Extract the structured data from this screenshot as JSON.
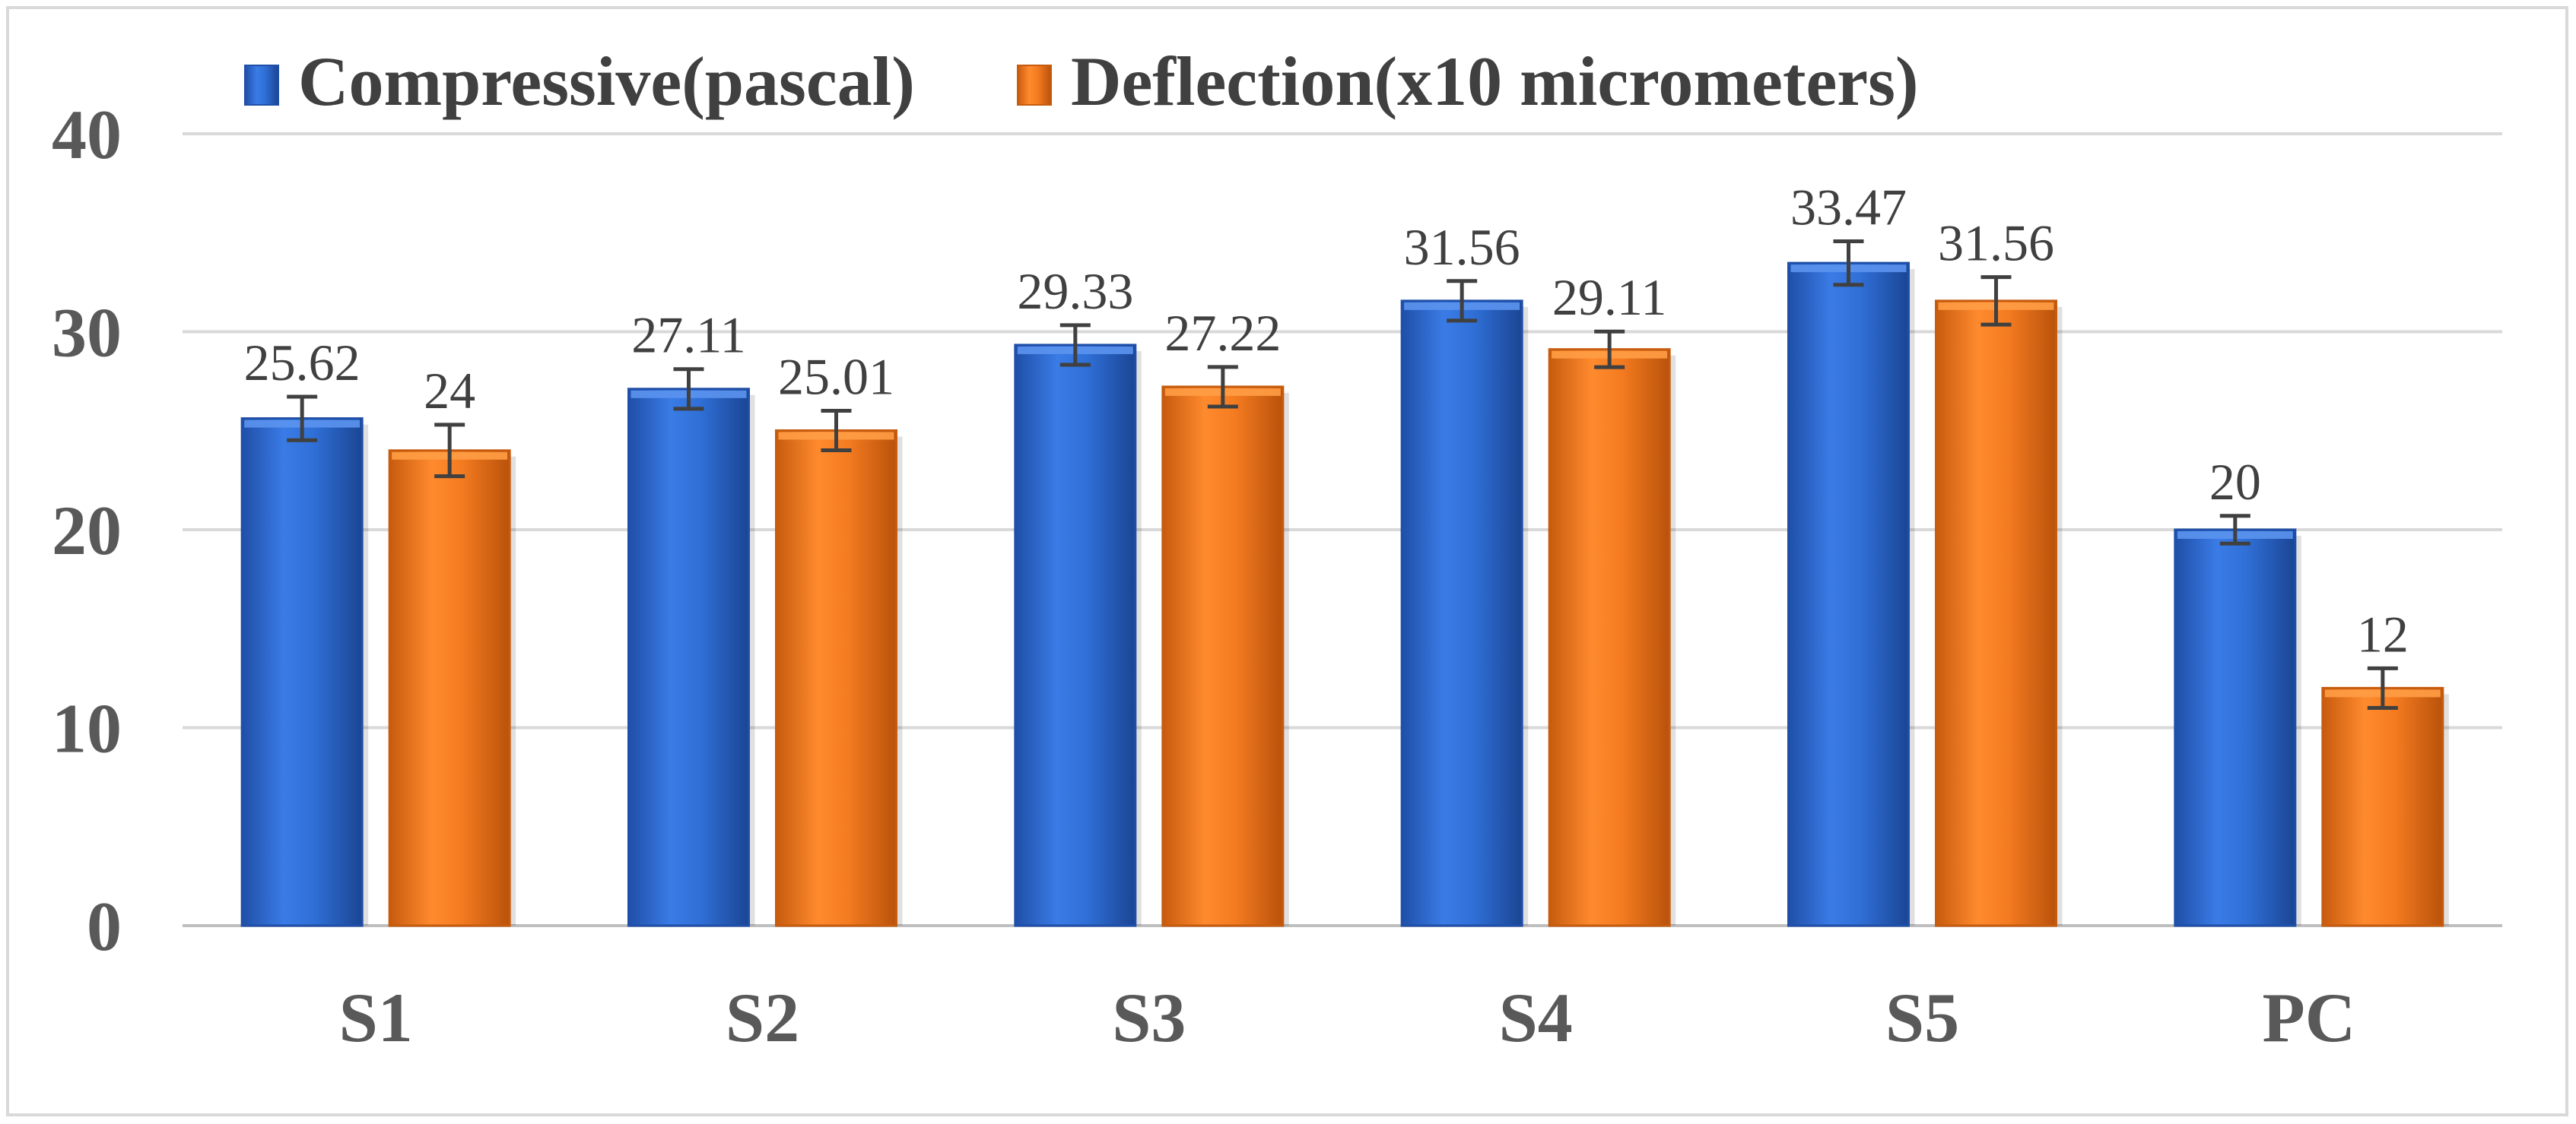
{
  "chart_data": {
    "type": "bar",
    "title": "",
    "xlabel": "",
    "ylabel": "",
    "categories": [
      "S1",
      "S2",
      "S3",
      "S4",
      "S5",
      "PC"
    ],
    "series": [
      {
        "name": "Compressive(pascal)",
        "values": [
          25.62,
          27.11,
          29.33,
          31.56,
          33.47,
          20
        ],
        "labels": [
          "25.62",
          "27.11",
          "29.33",
          "31.56",
          "33.47",
          "20"
        ],
        "errors": [
          1.1,
          1.0,
          1.0,
          1.0,
          1.1,
          0.7
        ],
        "color": "#2f6fd6",
        "color_light": "#5b93ee",
        "color_dark": "#1f4fa8"
      },
      {
        "name": "Deflection(x10 micrometers)",
        "values": [
          24,
          25.01,
          27.22,
          29.11,
          31.56,
          12
        ],
        "labels": [
          "24",
          "25.01",
          "27.22",
          "29.11",
          "31.56",
          "12"
        ],
        "errors": [
          1.3,
          1.0,
          1.0,
          0.9,
          1.2,
          1.0
        ],
        "color": "#f47b20",
        "color_light": "#ff9d45",
        "color_dark": "#c75b0e"
      }
    ],
    "ylim": [
      0,
      40
    ],
    "yticks": [
      0,
      10,
      20,
      30,
      40
    ],
    "grid": true,
    "legend_position": "top-left",
    "error_bars": true,
    "data_labels": true
  }
}
